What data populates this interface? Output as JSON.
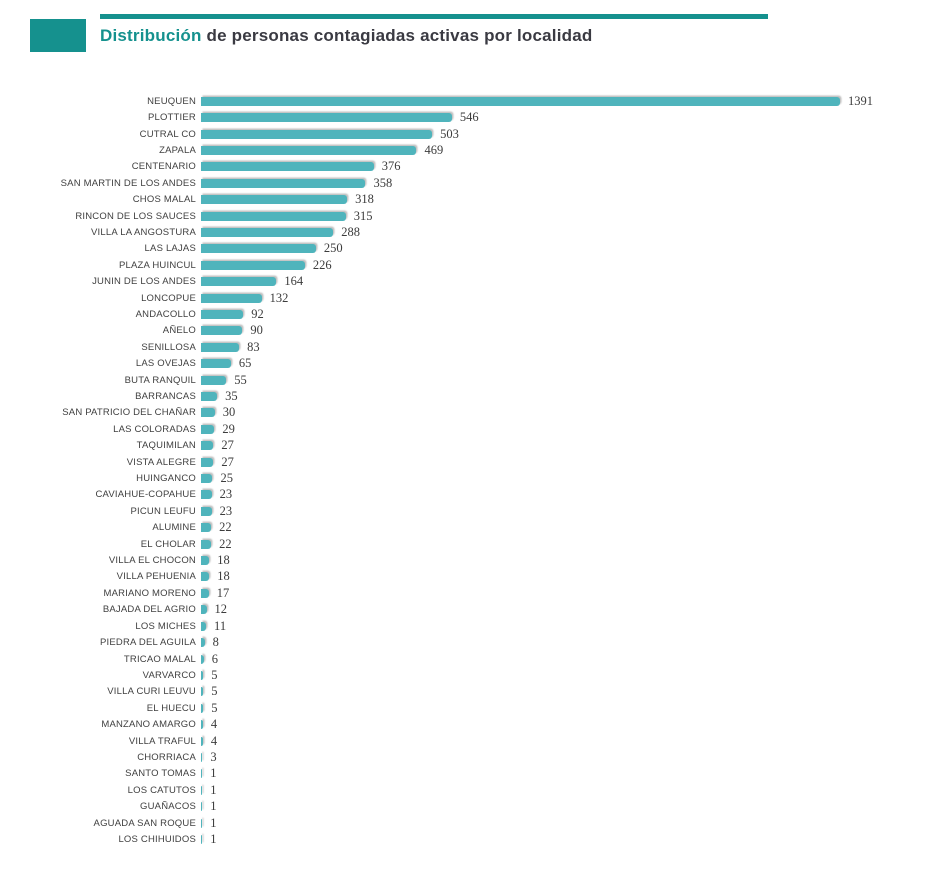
{
  "header": {
    "title_highlight": "Distribución",
    "title_rest": " de personas contagiadas activas por localidad",
    "accent_color": "#15918E",
    "title_text_color": "#3a3a42"
  },
  "chart_data": {
    "type": "bar",
    "orientation": "horizontal",
    "title": "Distribución de personas contagiadas activas por localidad",
    "xlabel": "",
    "ylabel": "",
    "grid": false,
    "legend": false,
    "bar_color": "#4FB4BC",
    "value_label_color": "#3c3c3c",
    "category_label_color": "#404040",
    "xlim": [
      0,
      1391
    ],
    "categories": [
      "NEUQUEN",
      "PLOTTIER",
      "CUTRAL CO",
      "ZAPALA",
      "CENTENARIO",
      "SAN MARTIN DE LOS ANDES",
      "CHOS MALAL",
      "RINCON DE LOS SAUCES",
      "VILLA LA ANGOSTURA",
      "LAS LAJAS",
      "PLAZA HUINCUL",
      "JUNIN DE LOS ANDES",
      "LONCOPUE",
      "ANDACOLLO",
      "AÑELO",
      "SENILLOSA",
      "LAS OVEJAS",
      "BUTA RANQUIL",
      "BARRANCAS",
      "SAN PATRICIO DEL CHAÑAR",
      "LAS COLORADAS",
      "TAQUIMILAN",
      "VISTA ALEGRE",
      "HUINGANCO",
      "CAVIAHUE-COPAHUE",
      "PICUN LEUFU",
      "ALUMINE",
      "EL CHOLAR",
      "VILLA EL CHOCON",
      "VILLA PEHUENIA",
      "MARIANO MORENO",
      "BAJADA DEL AGRIO",
      "LOS MICHES",
      "PIEDRA DEL AGUILA",
      "TRICAO MALAL",
      "VARVARCO",
      "VILLA CURI LEUVU",
      "EL HUECU",
      "MANZANO AMARGO",
      "VILLA TRAFUL",
      "CHORRIACA",
      "SANTO TOMAS",
      "LOS CATUTOS",
      "GUAÑACOS",
      "AGUADA SAN ROQUE",
      "LOS CHIHUIDOS"
    ],
    "values": [
      1391,
      546,
      503,
      469,
      376,
      358,
      318,
      315,
      288,
      250,
      226,
      164,
      132,
      92,
      90,
      83,
      65,
      55,
      35,
      30,
      29,
      27,
      27,
      25,
      23,
      23,
      22,
      22,
      18,
      18,
      17,
      12,
      11,
      8,
      6,
      5,
      5,
      5,
      4,
      4,
      3,
      1,
      1,
      1,
      1,
      1
    ]
  }
}
